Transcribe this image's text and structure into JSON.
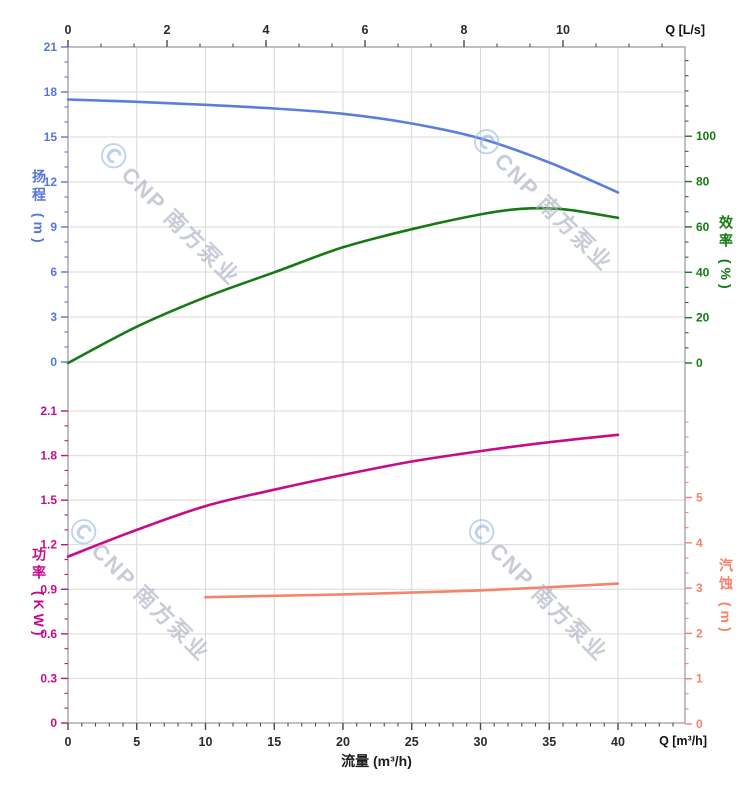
{
  "watermark": {
    "logo": "Ⓒ",
    "text": "CNP 南方泵业"
  },
  "axes": {
    "x_bottom": {
      "title": "流量 (m³/h)",
      "unit_label": "Q [m³/h]",
      "tick_labels": [
        "0",
        "5",
        "10",
        "15",
        "20",
        "25",
        "30",
        "35",
        "40"
      ],
      "tick_values": [
        0,
        5,
        10,
        15,
        20,
        25,
        30,
        35,
        40
      ],
      "color": "#2b2b2b"
    },
    "x_top": {
      "unit_label": "Q [L/s]",
      "tick_labels": [
        "0",
        "2",
        "4",
        "6",
        "8",
        "10"
      ],
      "tick_values": [
        0,
        2,
        4,
        6,
        8,
        10
      ],
      "color": "#2b2b2b"
    },
    "y_head": {
      "title": "扬程 (m)",
      "tick_labels": [
        "0",
        "3",
        "6",
        "9",
        "12",
        "15",
        "18",
        "21"
      ],
      "tick_values": [
        0,
        3,
        6,
        9,
        12,
        15,
        18,
        21
      ],
      "color": "#5577dd"
    },
    "y_eff": {
      "title": "效率 (%)",
      "tick_labels": [
        "0",
        "20",
        "40",
        "60",
        "80",
        "100"
      ],
      "tick_values": [
        0,
        20,
        40,
        60,
        80,
        100
      ],
      "color": "#157a15"
    },
    "y_power": {
      "title": "功率 (KW)",
      "tick_labels": [
        "0",
        "0.3",
        "0.6",
        "0.9",
        "1.2",
        "1.5",
        "1.8",
        "2.1"
      ],
      "tick_values": [
        0,
        0.3,
        0.6,
        0.9,
        1.2,
        1.5,
        1.8,
        2.1
      ],
      "color": "#c50d8a"
    },
    "y_npsh": {
      "title": "汽蚀 (m)",
      "tick_labels": [
        "0",
        "1",
        "2",
        "3",
        "4",
        "5"
      ],
      "tick_values": [
        0,
        1,
        2,
        3,
        4,
        5
      ],
      "color": "#f5846b"
    }
  },
  "chart_data": [
    {
      "type": "line",
      "xlabel": "流量 (m³/h)",
      "x2label": "Q [L/s]",
      "x": [
        0,
        5,
        10,
        15,
        20,
        25,
        30,
        35,
        40
      ],
      "xlim": [
        0,
        44.9
      ],
      "grid": true,
      "series": [
        {
          "name": "扬程",
          "ylabel": "扬程 (m)",
          "axis": "left",
          "scale": "head",
          "ylim": [
            0,
            21
          ],
          "color": "#5b7ede",
          "values": [
            17.5,
            17.35,
            17.15,
            16.9,
            16.55,
            15.9,
            14.9,
            13.3,
            11.3
          ]
        },
        {
          "name": "效率",
          "ylabel": "效率 (%)",
          "axis": "right",
          "scale": "eff",
          "ylim": [
            0,
            139
          ],
          "color": "#157a15",
          "x": [
            0,
            5,
            10,
            15,
            20,
            25,
            30,
            33,
            36,
            40
          ],
          "values": [
            0,
            16,
            29,
            40,
            51,
            59,
            65.5,
            68,
            67.8,
            64
          ]
        }
      ]
    },
    {
      "type": "line",
      "xlabel": "流量 (m³/h)",
      "x": [
        0,
        5,
        10,
        15,
        20,
        25,
        30,
        35,
        40
      ],
      "xlim": [
        0,
        44.9
      ],
      "grid": true,
      "series": [
        {
          "name": "功率",
          "ylabel": "功率 (KW)",
          "axis": "left",
          "scale": "power",
          "ylim": [
            0,
            2.1
          ],
          "color": "#c50d8a",
          "values": [
            1.12,
            1.3,
            1.46,
            1.57,
            1.67,
            1.76,
            1.83,
            1.89,
            1.94
          ]
        },
        {
          "name": "汽蚀",
          "ylabel": "汽蚀 (m)",
          "axis": "right",
          "scale": "npsh",
          "ylim": [
            0,
            6.9
          ],
          "color": "#f5846b",
          "x": [
            10,
            15,
            20,
            25,
            30,
            35,
            40
          ],
          "values": [
            2.8,
            2.83,
            2.86,
            2.9,
            2.95,
            3.02,
            3.1
          ]
        }
      ]
    }
  ]
}
